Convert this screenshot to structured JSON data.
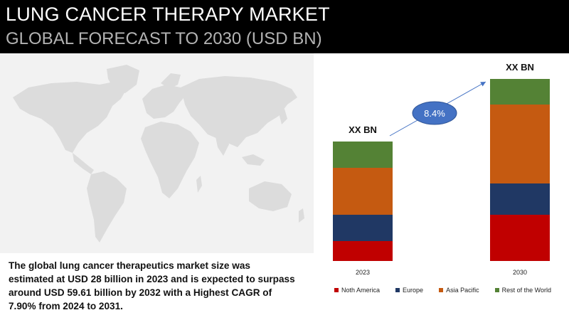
{
  "header": {
    "title": "LUNG CANCER THERAPY MARKET",
    "subtitle": "GLOBAL FORECAST TO 2030 (USD BN)"
  },
  "summary": {
    "lines": [
      "The global lung cancer therapeutics market size was",
      "estimated at USD 28 billion in 2023 and is expected to surpass",
      "around USD 59.61 billion by 2032 with a Highest CAGR of",
      "7.90% from 2024 to 2031."
    ]
  },
  "map": {
    "icon": "world-map-icon",
    "color": "#dcdcdc"
  },
  "chart_data": {
    "type": "bar",
    "stacked": true,
    "categories": [
      "2023",
      "2030"
    ],
    "series": [
      {
        "name": "Noth America",
        "color": "#c00000",
        "values": [
          28,
          65
        ]
      },
      {
        "name": "Europe",
        "color": "#203864",
        "values": [
          37,
          44
        ]
      },
      {
        "name": "Asia Pacific",
        "color": "#c55a11",
        "values": [
          66,
          111
        ]
      },
      {
        "name": "Rest of the World",
        "color": "#548235",
        "values": [
          37,
          36
        ]
      }
    ],
    "bar_labels": [
      "XX BN",
      "XX BN"
    ],
    "annotation": {
      "text": "8.4%",
      "color": "#4472c4"
    },
    "ylim": [
      0,
      270
    ],
    "grid": false,
    "legend_position": "bottom"
  }
}
